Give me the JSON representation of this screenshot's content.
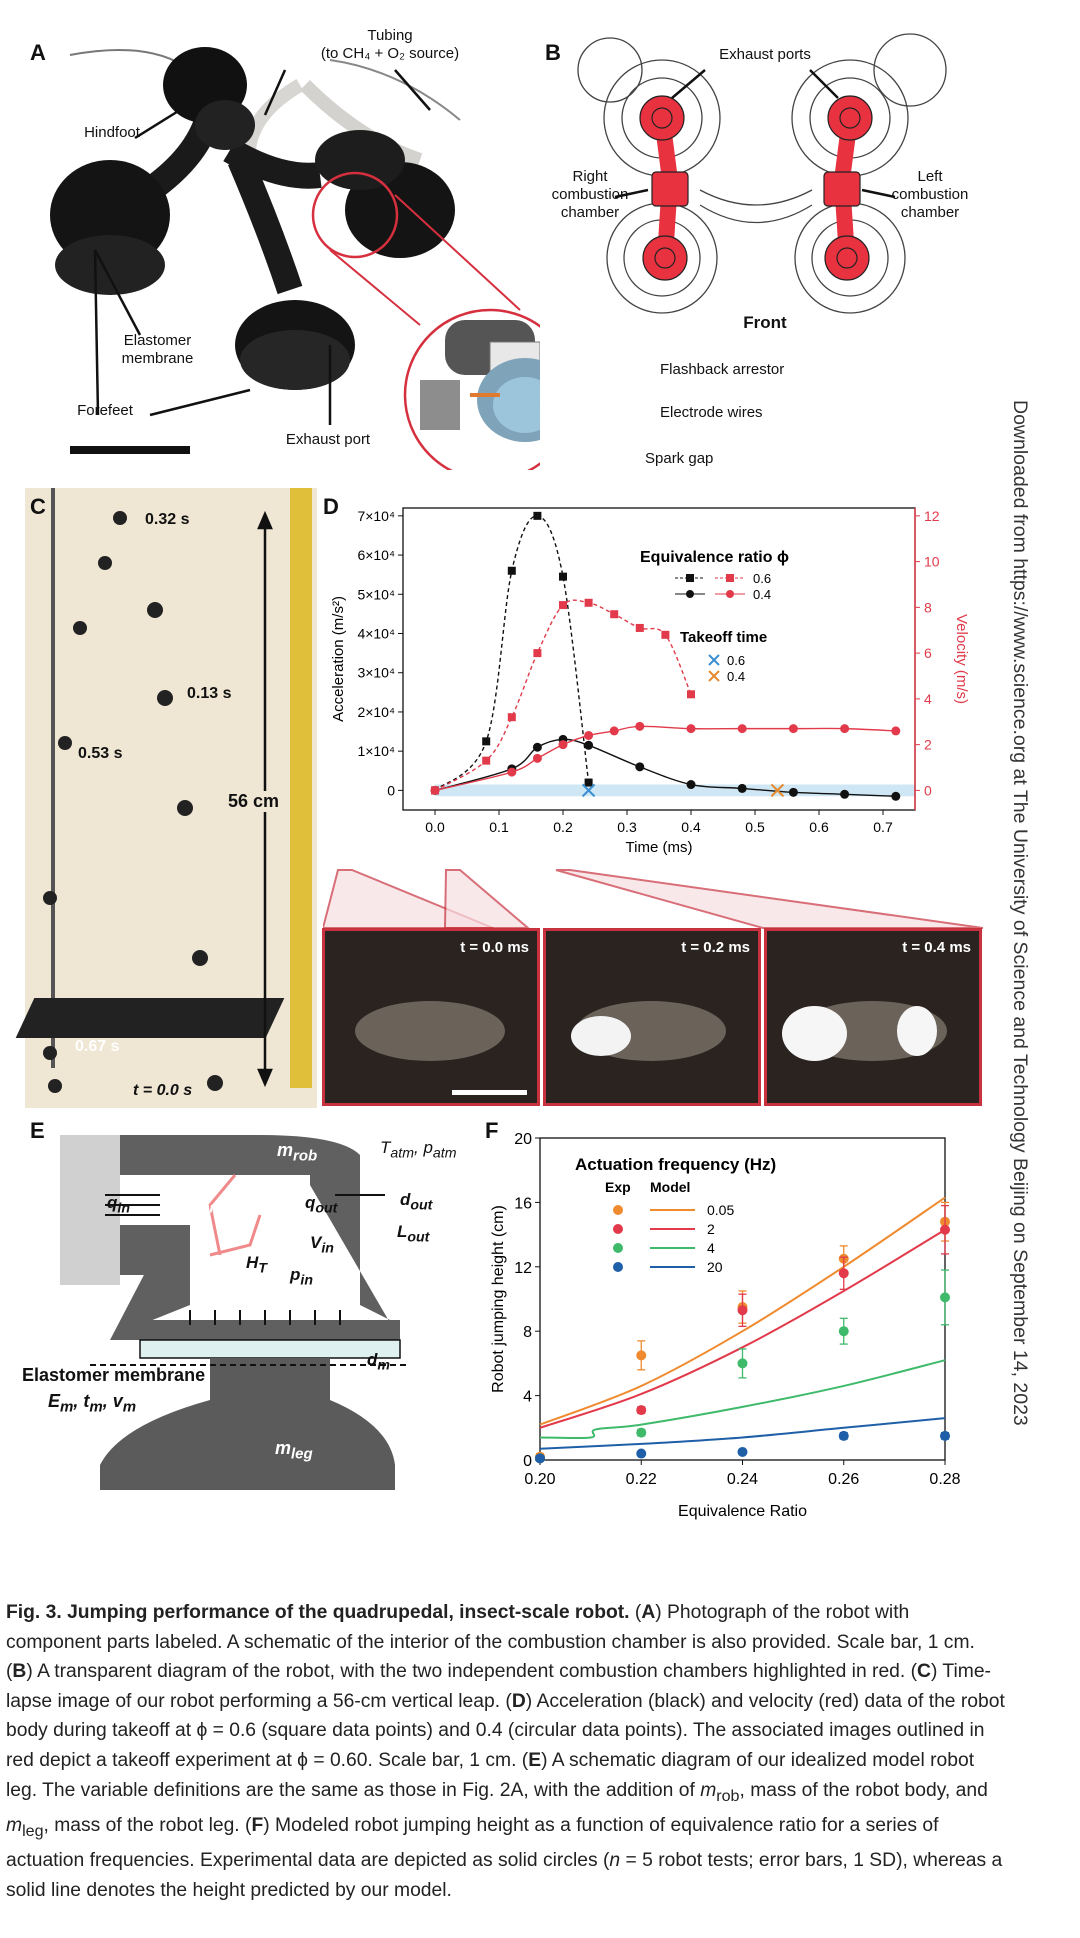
{
  "panels": {
    "A": {
      "letter": "A",
      "tubing_label_1": "Tubing",
      "tubing_label_2": "(to CH₄ + O₂ source)",
      "hindfoot": "Hindfoot",
      "elastomer_1": "Elastomer",
      "elastomer_2": "membrane",
      "forefeet": "Forefeet",
      "exhaust_port": "Exhaust port",
      "flashback": "Flashback arrestor",
      "electrode": "Electrode wires",
      "spark": "Spark gap"
    },
    "B": {
      "letter": "B",
      "exhaust_ports": "Exhaust ports",
      "right_1": "Right",
      "right_2": "combustion",
      "right_3": "chamber",
      "left_1": "Left",
      "left_2": "combustion",
      "left_3": "chamber",
      "front": "Front"
    },
    "C": {
      "letter": "C",
      "t032": "0.32 s",
      "t013": "0.13 s",
      "t053": "0.53 s",
      "height": "56 cm",
      "t067": "0.67 s",
      "t000": "t = 0.0 s"
    },
    "D": {
      "letter": "D",
      "photos": [
        {
          "label": "t = 0.0 ms"
        },
        {
          "label": "t = 0.2 ms"
        },
        {
          "label": "t = 0.4 ms"
        }
      ]
    },
    "E": {
      "letter": "E",
      "m_rob": "m",
      "m_rob_sub": "rob",
      "t_atm": "T",
      "t_atm_sub": "atm",
      "p_atm": ", p",
      "p_atm_sub": "atm",
      "q_in": "q",
      "q_in_sub": "in",
      "d_in": "d",
      "d_in_sub": "in",
      "q_out": "q",
      "q_out_sub": "out",
      "d_out": "d",
      "d_out_sub": "out",
      "l_out": "L",
      "l_out_sub": "out",
      "v_in": "V",
      "v_in_sub": "in",
      "h_t": "H",
      "h_t_sub": "T",
      "p_in": "p",
      "p_in_sub": "in",
      "d_m": "d",
      "d_m_sub": "m",
      "membrane_title": "Elastomer membrane",
      "membrane_vars": "E",
      "membrane_vars_sub": "m",
      "membrane_t": ", t",
      "membrane_t_sub": "m",
      "membrane_v": ", v",
      "membrane_v_sub": "m",
      "m_leg": "m",
      "m_leg_sub": "leg"
    },
    "F": {
      "letter": "F"
    }
  },
  "chart_data": [
    {
      "type": "line",
      "panel": "D",
      "xlabel": "Time (ms)",
      "ylabel": "Acceleration (m/s²)",
      "y2label": "Velocity (m/s)",
      "xlim": [
        -0.05,
        0.75
      ],
      "ylim": [
        -5000,
        72000
      ],
      "y2lim": [
        -0.857,
        12.343
      ],
      "xticks": [
        "0.0",
        "0.1",
        "0.2",
        "0.3",
        "0.4",
        "0.5",
        "0.6",
        "0.7"
      ],
      "yticks": [
        "0",
        "1×10⁴",
        "2×10⁴",
        "3×10⁴",
        "4×10⁴",
        "5×10⁴",
        "6×10⁴",
        "7×10⁴"
      ],
      "y2ticks": [
        "0",
        "2",
        "4",
        "6",
        "8",
        "10",
        "12"
      ],
      "legend_title": "Equivalence ratio ϕ",
      "legend_entries": [
        "0.6",
        "0.4"
      ],
      "takeoff_title": "Takeoff time",
      "takeoff_entries": [
        "0.6",
        "0.4"
      ],
      "takeoff_colors": [
        "#3b8fd1",
        "#e58a2e"
      ],
      "colors": {
        "accel": "#111111",
        "velocity": "#e23a4a",
        "band": "#cfe7f4"
      },
      "series": [
        {
          "name": "acceleration ϕ=0.6",
          "axis": "left",
          "marker": "square",
          "style": "dashed",
          "x": [
            0.0,
            0.08,
            0.12,
            0.16,
            0.2,
            0.24
          ],
          "y": [
            0,
            12500,
            56000,
            70000,
            54500,
            2000
          ]
        },
        {
          "name": "acceleration ϕ=0.4",
          "axis": "left",
          "marker": "circle",
          "style": "solid",
          "x": [
            0.0,
            0.12,
            0.16,
            0.2,
            0.24,
            0.32,
            0.4,
            0.48,
            0.56,
            0.64,
            0.72
          ],
          "y": [
            0,
            5500,
            11000,
            13000,
            11500,
            6000,
            1500,
            500,
            -500,
            -1000,
            -1500
          ]
        },
        {
          "name": "velocity ϕ=0.6",
          "axis": "right",
          "marker": "square",
          "style": "dashed",
          "x": [
            0.0,
            0.08,
            0.12,
            0.16,
            0.2,
            0.24,
            0.28,
            0.32,
            0.36,
            0.4
          ],
          "y": [
            0,
            1.3,
            3.2,
            6.0,
            8.1,
            8.2,
            7.7,
            7.1,
            6.8,
            4.2
          ]
        },
        {
          "name": "velocity ϕ=0.4",
          "axis": "right",
          "marker": "circle",
          "style": "solid",
          "x": [
            0.0,
            0.12,
            0.16,
            0.2,
            0.24,
            0.28,
            0.32,
            0.4,
            0.48,
            0.56,
            0.64,
            0.72
          ],
          "y": [
            0,
            0.8,
            1.4,
            2.0,
            2.4,
            2.6,
            2.8,
            2.7,
            2.7,
            2.7,
            2.7,
            2.6
          ]
        }
      ],
      "takeoff_times": [
        {
          "phi": "0.6",
          "x": 0.24
        },
        {
          "phi": "0.4",
          "x": 0.535
        }
      ]
    },
    {
      "type": "scatter",
      "panel": "F",
      "xlabel": "Equivalence Ratio",
      "ylabel": "Robot jumping height (cm)",
      "xlim": [
        0.2,
        0.28
      ],
      "ylim": [
        0,
        20
      ],
      "xticks": [
        "0.20",
        "0.22",
        "0.24",
        "0.26",
        "0.28"
      ],
      "yticks": [
        "0",
        "4",
        "8",
        "12",
        "16",
        "20"
      ],
      "legend_title": "Actuation frequency (Hz)",
      "legend_exp": "Exp",
      "legend_model": "Model",
      "series": [
        {
          "name": "0.05",
          "color": "#ef8a2e",
          "exp_x": [
            0.2,
            0.22,
            0.24,
            0.26,
            0.28
          ],
          "exp_y": [
            0.2,
            6.5,
            9.5,
            12.5,
            14.8
          ],
          "err": [
            0.2,
            0.9,
            1.0,
            0.8,
            1.2
          ],
          "model_x": [
            0.2,
            0.22,
            0.24,
            0.26,
            0.28
          ],
          "model_y": [
            2.2,
            4.6,
            8.0,
            12.0,
            16.3
          ]
        },
        {
          "name": "2",
          "color": "#e23a4a",
          "exp_x": [
            0.2,
            0.22,
            0.24,
            0.26,
            0.28
          ],
          "exp_y": [
            0.1,
            3.1,
            9.3,
            11.6,
            14.3
          ],
          "err": [
            0.1,
            0.2,
            1.0,
            1.0,
            1.5
          ],
          "model_x": [
            0.2,
            0.22,
            0.24,
            0.26,
            0.28
          ],
          "model_y": [
            2.0,
            4.1,
            7.0,
            10.5,
            14.3
          ]
        },
        {
          "name": "4",
          "color": "#3fba6b",
          "exp_x": [
            0.2,
            0.22,
            0.24,
            0.26,
            0.28
          ],
          "exp_y": [
            0.1,
            1.7,
            6.0,
            8.0,
            10.1
          ],
          "err": [
            0.1,
            0.2,
            0.9,
            0.8,
            1.7
          ],
          "model_x": [
            0.2,
            0.21,
            0.211,
            0.22,
            0.24,
            0.26,
            0.28
          ],
          "model_y": [
            1.4,
            1.4,
            1.9,
            2.2,
            3.3,
            4.6,
            6.2
          ]
        },
        {
          "name": "20",
          "color": "#1f5fa8",
          "exp_x": [
            0.2,
            0.22,
            0.24,
            0.26,
            0.28
          ],
          "exp_y": [
            0.1,
            0.4,
            0.5,
            1.5,
            1.5
          ],
          "err": [
            0.05,
            0.1,
            0.1,
            0.2,
            0.2
          ],
          "model_x": [
            0.2,
            0.22,
            0.24,
            0.26,
            0.28
          ],
          "model_y": [
            0.7,
            1.0,
            1.4,
            2.0,
            2.6
          ]
        }
      ]
    }
  ],
  "sidebar": {
    "download_note": "Downloaded from https://www.science.org at The University of Science and Technology Beijing on September 14, 2023"
  },
  "caption": {
    "title": "Fig. 3. Jumping performance of the quadrupedal, insect-scale robot.",
    "segments": [
      {
        "bold": true,
        "text": "A"
      },
      {
        "bold": false,
        "text": ") Photograph of the robot with component parts labeled. A schematic of the interior of the combustion chamber is also provided. Scale bar, 1 cm. ("
      },
      {
        "bold": true,
        "text": "B"
      },
      {
        "bold": false,
        "text": ") A transparent diagram of the robot, with the two independent combustion chambers highlighted in red. ("
      },
      {
        "bold": true,
        "text": "C"
      },
      {
        "bold": false,
        "text": ") Time-lapse image of our robot performing a 56-cm vertical leap. ("
      },
      {
        "bold": true,
        "text": "D"
      },
      {
        "bold": false,
        "text": ") Acceleration (black) and velocity (red) data of the robot body during takeoff at ϕ = 0.6 (square data points) and 0.4 (circular data points). The associated images outlined in red depict a takeoff experiment at ϕ = 0.60. Scale bar, 1 cm. ("
      },
      {
        "bold": true,
        "text": "E"
      },
      {
        "bold": false,
        "text": ") A schematic diagram of our idealized model robot leg. The variable definitions are the same as those in Fig. 2A, with the addition of "
      },
      {
        "bold": false,
        "italic": true,
        "text": "m"
      },
      {
        "bold": false,
        "sub": true,
        "text": "rob"
      },
      {
        "bold": false,
        "text": ", mass of the robot body, and "
      },
      {
        "bold": false,
        "italic": true,
        "text": "m"
      },
      {
        "bold": false,
        "sub": true,
        "text": "leg"
      },
      {
        "bold": false,
        "text": ", mass of the robot leg. ("
      },
      {
        "bold": true,
        "text": "F"
      },
      {
        "bold": false,
        "text": ") Modeled robot jumping height as a function of equivalence ratio for a series of actuation frequencies. Experimental data are depicted as solid circles ("
      },
      {
        "bold": false,
        "italic": true,
        "text": "n"
      },
      {
        "bold": false,
        "text": " = 5 robot tests; error bars, 1 SD), whereas a solid line denotes the height predicted by our model."
      }
    ]
  }
}
